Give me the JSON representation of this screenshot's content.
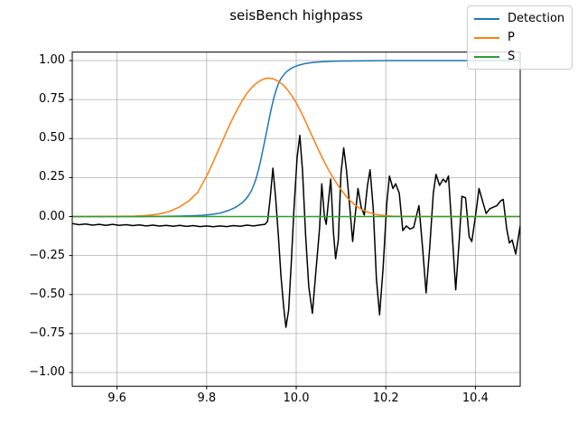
{
  "colors": {
    "detection": "#1f77b4",
    "p": "#ff7f0e",
    "s": "#2ca02c",
    "waveform": "#000000",
    "grid": "#b0b0b0",
    "axes_frame": "#000000",
    "legend_border": "#cccccc",
    "background": "#ffffff"
  },
  "legend": {
    "items": [
      {
        "label": "Detection",
        "color": "#1f77b4"
      },
      {
        "label": "P",
        "color": "#ff7f0e"
      },
      {
        "label": "S",
        "color": "#2ca02c"
      }
    ]
  },
  "chart_data": {
    "type": "line",
    "title": "seisBench highpass",
    "xlim": [
      9.5,
      10.5
    ],
    "ylim": [
      -1.088,
      1.0545
    ],
    "xticks": [
      9.6,
      9.8,
      10.0,
      10.2,
      10.4
    ],
    "xtick_labels": [
      "9.6",
      "9.8",
      "10.0",
      "10.2",
      "10.4"
    ],
    "yticks": [
      1.0,
      0.75,
      0.5,
      0.25,
      0.0,
      -0.25,
      -0.5,
      -0.75,
      -1.0
    ],
    "ytick_labels": [
      "1.00",
      "0.75",
      "0.50",
      "0.25",
      "0.00",
      "−0.25",
      "−0.50",
      "−0.75",
      "−1.00"
    ],
    "grid": true,
    "legend_position": "upper right",
    "series": [
      {
        "name": "waveform",
        "color": "#000000",
        "in_legend": false,
        "points": [
          [
            9.5,
            -0.045
          ],
          [
            9.515,
            -0.052
          ],
          [
            9.53,
            -0.048
          ],
          [
            9.545,
            -0.055
          ],
          [
            9.56,
            -0.05
          ],
          [
            9.575,
            -0.056
          ],
          [
            9.59,
            -0.05
          ],
          [
            9.605,
            -0.057
          ],
          [
            9.62,
            -0.052
          ],
          [
            9.635,
            -0.058
          ],
          [
            9.65,
            -0.053
          ],
          [
            9.665,
            -0.06
          ],
          [
            9.68,
            -0.055
          ],
          [
            9.695,
            -0.061
          ],
          [
            9.71,
            -0.056
          ],
          [
            9.725,
            -0.062
          ],
          [
            9.74,
            -0.057
          ],
          [
            9.755,
            -0.063
          ],
          [
            9.77,
            -0.058
          ],
          [
            9.785,
            -0.064
          ],
          [
            9.8,
            -0.06
          ],
          [
            9.815,
            -0.065
          ],
          [
            9.83,
            -0.06
          ],
          [
            9.845,
            -0.064
          ],
          [
            9.86,
            -0.058
          ],
          [
            9.875,
            -0.062
          ],
          [
            9.89,
            -0.055
          ],
          [
            9.905,
            -0.06
          ],
          [
            9.92,
            -0.054
          ],
          [
            9.93,
            -0.05
          ],
          [
            9.936,
            -0.03
          ],
          [
            9.942,
            0.12
          ],
          [
            9.948,
            0.31
          ],
          [
            9.954,
            0.12
          ],
          [
            9.96,
            -0.12
          ],
          [
            9.966,
            -0.38
          ],
          [
            9.972,
            -0.58
          ],
          [
            9.977,
            -0.71
          ],
          [
            9.983,
            -0.6
          ],
          [
            9.989,
            -0.3
          ],
          [
            9.995,
            0.05
          ],
          [
            10.002,
            0.38
          ],
          [
            10.008,
            0.52
          ],
          [
            10.014,
            0.3
          ],
          [
            10.021,
            -0.12
          ],
          [
            10.028,
            -0.45
          ],
          [
            10.036,
            -0.62
          ],
          [
            10.044,
            -0.35
          ],
          [
            10.052,
            -0.08
          ],
          [
            10.057,
            0.21
          ],
          [
            10.063,
            0.0
          ],
          [
            10.067,
            -0.05
          ],
          [
            10.072,
            0.1
          ],
          [
            10.077,
            0.24
          ],
          [
            10.083,
            -0.1
          ],
          [
            10.088,
            -0.27
          ],
          [
            10.094,
            -0.15
          ],
          [
            10.1,
            0.28
          ],
          [
            10.106,
            0.44
          ],
          [
            10.112,
            0.3
          ],
          [
            10.119,
            0.08
          ],
          [
            10.126,
            -0.16
          ],
          [
            10.132,
            0.02
          ],
          [
            10.138,
            0.18
          ],
          [
            10.145,
            0.06
          ],
          [
            10.152,
            0.01
          ],
          [
            10.159,
            0.2
          ],
          [
            10.165,
            0.3
          ],
          [
            10.172,
            0.05
          ],
          [
            10.179,
            -0.4
          ],
          [
            10.186,
            -0.63
          ],
          [
            10.194,
            -0.33
          ],
          [
            10.202,
            0.08
          ],
          [
            10.208,
            0.26
          ],
          [
            10.216,
            0.18
          ],
          [
            10.222,
            0.21
          ],
          [
            10.23,
            0.15
          ],
          [
            10.238,
            -0.09
          ],
          [
            10.246,
            -0.06
          ],
          [
            10.254,
            -0.08
          ],
          [
            10.262,
            -0.07
          ],
          [
            10.268,
            0.0
          ],
          [
            10.274,
            0.07
          ],
          [
            10.282,
            -0.2
          ],
          [
            10.29,
            -0.49
          ],
          [
            10.298,
            -0.2
          ],
          [
            10.306,
            0.15
          ],
          [
            10.312,
            0.27
          ],
          [
            10.32,
            0.2
          ],
          [
            10.328,
            0.24
          ],
          [
            10.334,
            0.22
          ],
          [
            10.34,
            0.26
          ],
          [
            10.348,
            -0.1
          ],
          [
            10.356,
            -0.47
          ],
          [
            10.364,
            -0.15
          ],
          [
            10.37,
            0.13
          ],
          [
            10.378,
            0.12
          ],
          [
            10.386,
            -0.13
          ],
          [
            10.392,
            -0.16
          ],
          [
            10.4,
            0.0
          ],
          [
            10.408,
            0.18
          ],
          [
            10.416,
            0.1
          ],
          [
            10.424,
            0.02
          ],
          [
            10.432,
            0.05
          ],
          [
            10.44,
            0.06
          ],
          [
            10.448,
            0.07
          ],
          [
            10.456,
            0.1
          ],
          [
            10.462,
            0.11
          ],
          [
            10.47,
            -0.08
          ],
          [
            10.476,
            -0.17
          ],
          [
            10.482,
            -0.15
          ],
          [
            10.49,
            -0.24
          ],
          [
            10.5,
            -0.06
          ]
        ]
      },
      {
        "name": "Detection",
        "color": "#1f77b4",
        "in_legend": true,
        "points": [
          [
            9.5,
            0.0
          ],
          [
            9.6,
            0.0
          ],
          [
            9.65,
            0.0
          ],
          [
            9.7,
            0.001
          ],
          [
            9.74,
            0.003
          ],
          [
            9.77,
            0.005
          ],
          [
            9.79,
            0.008
          ],
          [
            9.81,
            0.013
          ],
          [
            9.83,
            0.022
          ],
          [
            9.85,
            0.04
          ],
          [
            9.865,
            0.06
          ],
          [
            9.88,
            0.09
          ],
          [
            9.89,
            0.12
          ],
          [
            9.9,
            0.165
          ],
          [
            9.905,
            0.2
          ],
          [
            9.91,
            0.24
          ],
          [
            9.915,
            0.29
          ],
          [
            9.92,
            0.35
          ],
          [
            9.925,
            0.42
          ],
          [
            9.93,
            0.49
          ],
          [
            9.935,
            0.56
          ],
          [
            9.94,
            0.63
          ],
          [
            9.945,
            0.7
          ],
          [
            9.95,
            0.76
          ],
          [
            9.955,
            0.81
          ],
          [
            9.96,
            0.85
          ],
          [
            9.965,
            0.88
          ],
          [
            9.97,
            0.9
          ],
          [
            9.975,
            0.918
          ],
          [
            9.98,
            0.933
          ],
          [
            9.99,
            0.952
          ],
          [
            10.0,
            0.965
          ],
          [
            10.01,
            0.974
          ],
          [
            10.02,
            0.981
          ],
          [
            10.04,
            0.989
          ],
          [
            10.06,
            0.993
          ],
          [
            10.08,
            0.996
          ],
          [
            10.1,
            0.997
          ],
          [
            10.15,
            0.999
          ],
          [
            10.2,
            1.0
          ],
          [
            10.3,
            1.0
          ],
          [
            10.4,
            1.0
          ],
          [
            10.5,
            1.0
          ]
        ]
      },
      {
        "name": "P",
        "color": "#ff7f0e",
        "in_legend": true,
        "points": [
          [
            9.5,
            0.0
          ],
          [
            9.6,
            0.001
          ],
          [
            9.64,
            0.003
          ],
          [
            9.66,
            0.006
          ],
          [
            9.68,
            0.011
          ],
          [
            9.7,
            0.02
          ],
          [
            9.72,
            0.036
          ],
          [
            9.74,
            0.062
          ],
          [
            9.76,
            0.1
          ],
          [
            9.78,
            0.155
          ],
          [
            9.8,
            0.26
          ],
          [
            9.81,
            0.32
          ],
          [
            9.82,
            0.385
          ],
          [
            9.83,
            0.45
          ],
          [
            9.84,
            0.515
          ],
          [
            9.85,
            0.58
          ],
          [
            9.86,
            0.64
          ],
          [
            9.87,
            0.695
          ],
          [
            9.88,
            0.745
          ],
          [
            9.89,
            0.79
          ],
          [
            9.9,
            0.825
          ],
          [
            9.91,
            0.852
          ],
          [
            9.92,
            0.872
          ],
          [
            9.93,
            0.884
          ],
          [
            9.935,
            0.888
          ],
          [
            9.94,
            0.887
          ],
          [
            9.95,
            0.882
          ],
          [
            9.96,
            0.868
          ],
          [
            9.97,
            0.845
          ],
          [
            9.98,
            0.815
          ],
          [
            9.99,
            0.775
          ],
          [
            10.0,
            0.73
          ],
          [
            10.01,
            0.675
          ],
          [
            10.02,
            0.615
          ],
          [
            10.03,
            0.55
          ],
          [
            10.04,
            0.49
          ],
          [
            10.05,
            0.425
          ],
          [
            10.06,
            0.365
          ],
          [
            10.07,
            0.31
          ],
          [
            10.08,
            0.26
          ],
          [
            10.09,
            0.215
          ],
          [
            10.1,
            0.172
          ],
          [
            10.11,
            0.135
          ],
          [
            10.12,
            0.103
          ],
          [
            10.13,
            0.077
          ],
          [
            10.14,
            0.056
          ],
          [
            10.15,
            0.04
          ],
          [
            10.16,
            0.028
          ],
          [
            10.17,
            0.019
          ],
          [
            10.18,
            0.012
          ],
          [
            10.2,
            0.005
          ],
          [
            10.22,
            0.002
          ],
          [
            10.25,
            0.001
          ],
          [
            10.3,
            0.0
          ],
          [
            10.4,
            0.0
          ],
          [
            10.5,
            0.0
          ]
        ]
      },
      {
        "name": "S",
        "color": "#2ca02c",
        "in_legend": true,
        "points": [
          [
            9.5,
            0.0
          ],
          [
            10.5,
            0.0
          ]
        ]
      }
    ]
  }
}
